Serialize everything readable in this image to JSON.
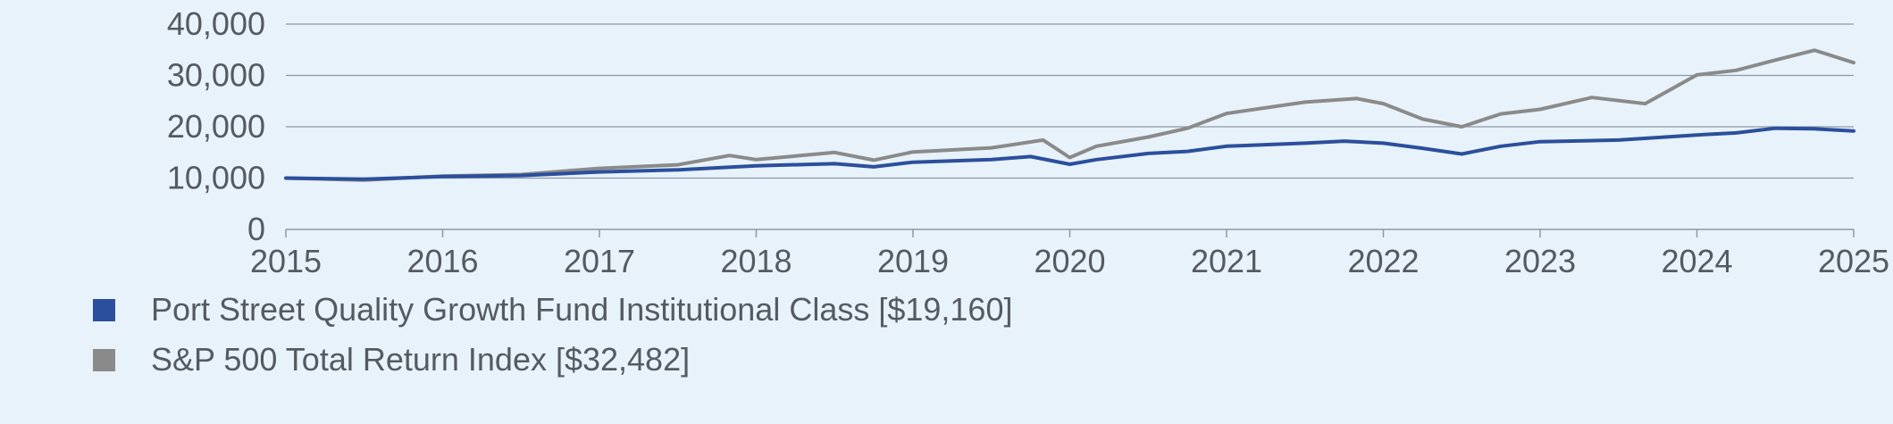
{
  "chart_data": {
    "type": "line",
    "title": "",
    "xlabel": "",
    "ylabel": "",
    "xlim": [
      2015,
      2025
    ],
    "ylim": [
      0,
      40000
    ],
    "x_ticks": [
      "2015",
      "2016",
      "2017",
      "2018",
      "2019",
      "2020",
      "2021",
      "2022",
      "2023",
      "2024",
      "2025"
    ],
    "y_ticks": [
      "0",
      "10,000",
      "20,000",
      "30,000",
      "40,000"
    ],
    "y_tick_values": [
      0,
      10000,
      20000,
      30000,
      40000
    ],
    "grid": "horizontal",
    "legend_position": "bottom-left",
    "series": [
      {
        "name": "Port Street Quality Growth Fund Institutional Class [$19,160]",
        "color": "#2b4f9c",
        "x": [
          2015.0,
          2015.5,
          2016.0,
          2016.5,
          2017.0,
          2017.5,
          2018.0,
          2018.5,
          2018.75,
          2019.0,
          2019.5,
          2019.75,
          2020.0,
          2020.17,
          2020.5,
          2020.75,
          2021.0,
          2021.5,
          2021.75,
          2022.0,
          2022.25,
          2022.5,
          2022.75,
          2023.0,
          2023.5,
          2024.0,
          2024.25,
          2024.5,
          2024.75,
          2025.0
        ],
        "y": [
          10000,
          9800,
          10300,
          10500,
          11200,
          11600,
          12400,
          12800,
          12200,
          13100,
          13600,
          14200,
          12700,
          13600,
          14800,
          15200,
          16200,
          16800,
          17200,
          16800,
          15800,
          14700,
          16200,
          17100,
          17400,
          18400,
          18800,
          19700,
          19600,
          19160
        ]
      },
      {
        "name": "S&P 500 Total Return Index [$32,482]",
        "color": "#8a8a8a",
        "x": [
          2015.0,
          2015.5,
          2016.0,
          2016.5,
          2017.0,
          2017.5,
          2017.83,
          2018.0,
          2018.5,
          2018.75,
          2019.0,
          2019.5,
          2019.83,
          2020.0,
          2020.17,
          2020.5,
          2020.75,
          2021.0,
          2021.5,
          2021.83,
          2022.0,
          2022.25,
          2022.5,
          2022.75,
          2023.0,
          2023.33,
          2023.67,
          2024.0,
          2024.25,
          2024.5,
          2024.75,
          2025.0
        ],
        "y": [
          10000,
          9600,
          10400,
          10700,
          11900,
          12600,
          14400,
          13600,
          15000,
          13500,
          15100,
          15900,
          17400,
          14000,
          16200,
          18000,
          19700,
          22600,
          24800,
          25500,
          24500,
          21500,
          20000,
          22500,
          23400,
          25700,
          24500,
          30100,
          31000,
          33000,
          34900,
          32482
        ]
      }
    ]
  }
}
